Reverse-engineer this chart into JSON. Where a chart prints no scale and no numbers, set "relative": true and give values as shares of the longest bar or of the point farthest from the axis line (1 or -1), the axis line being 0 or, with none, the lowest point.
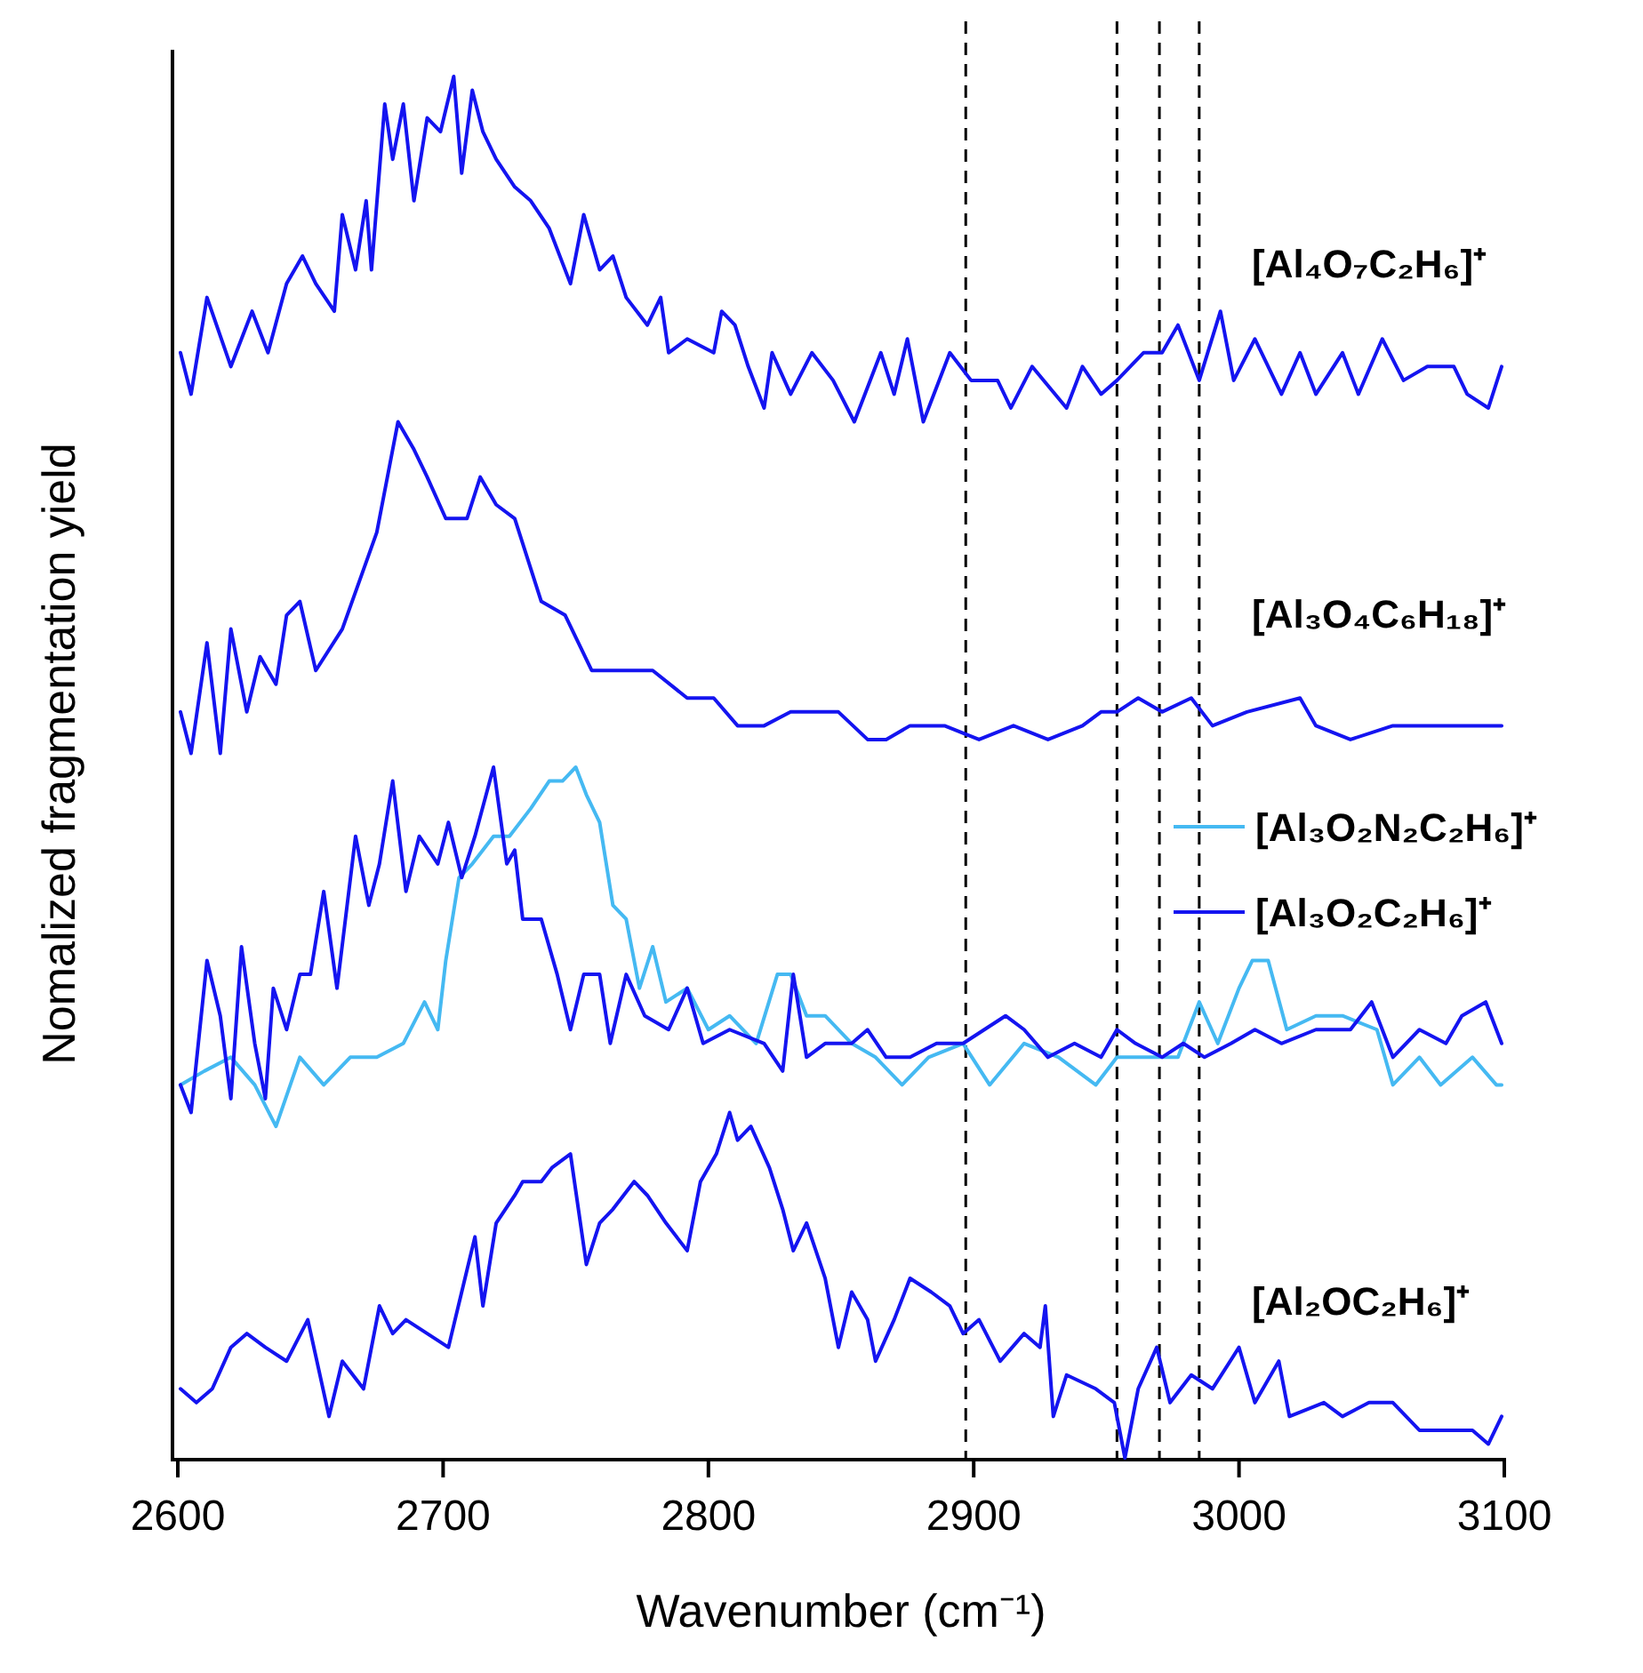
{
  "chart_data": {
    "type": "line",
    "relative": true,
    "xlabel": "Wavenumber (cm⁻¹)",
    "ylabel": "Nomalized fragmentation yield",
    "xlim": [
      2600,
      3100
    ],
    "xticks": [
      2600,
      2700,
      2800,
      2900,
      3000,
      3100
    ],
    "legend": "right",
    "ref_lines": [
      {
        "axis": "x",
        "value": 2897,
        "color": "#000000",
        "line_style": "dashed"
      },
      {
        "axis": "x",
        "value": 2954,
        "color": "#000000",
        "line_style": "dashed"
      },
      {
        "axis": "x",
        "value": 2970,
        "color": "#000000",
        "line_style": "dashed"
      },
      {
        "axis": "x",
        "value": 2985,
        "color": "#000000",
        "line_style": "dashed"
      }
    ],
    "series": [
      {
        "name": "[Al₄O₇C₂H₆]⁺",
        "color": "#1414f0",
        "x": [
          2601,
          2605,
          2611,
          2620,
          2628,
          2634,
          2641,
          2647,
          2652,
          2659,
          2662,
          2667,
          2671,
          2673,
          2678,
          2681,
          2685,
          2689,
          2694,
          2699,
          2704,
          2707,
          2711,
          2715,
          2720,
          2727,
          2733,
          2740,
          2748,
          2753,
          2759,
          2764,
          2769,
          2777,
          2782,
          2785,
          2792,
          2802,
          2805,
          2810,
          2815,
          2821,
          2824,
          2831,
          2839,
          2847,
          2855,
          2865,
          2870,
          2875,
          2881,
          2891,
          2899,
          2909,
          2914,
          2922,
          2935,
          2941,
          2948,
          2954,
          2964,
          2971,
          2977,
          2985,
          2993,
          2998,
          3006,
          3016,
          3023,
          3029,
          3039,
          3045,
          3054,
          3062,
          3071,
          3081,
          3086,
          3094,
          3099
        ],
        "values": [
          0.8,
          0.77,
          0.84,
          0.79,
          0.83,
          0.8,
          0.85,
          0.87,
          0.85,
          0.83,
          0.9,
          0.86,
          0.91,
          0.86,
          0.98,
          0.94,
          0.98,
          0.91,
          0.97,
          0.96,
          1.0,
          0.93,
          0.99,
          0.96,
          0.94,
          0.92,
          0.91,
          0.89,
          0.85,
          0.9,
          0.86,
          0.87,
          0.84,
          0.82,
          0.84,
          0.8,
          0.81,
          0.8,
          0.83,
          0.82,
          0.79,
          0.76,
          0.8,
          0.77,
          0.8,
          0.78,
          0.75,
          0.8,
          0.77,
          0.81,
          0.75,
          0.8,
          0.78,
          0.78,
          0.76,
          0.79,
          0.76,
          0.79,
          0.77,
          0.78,
          0.8,
          0.8,
          0.82,
          0.78,
          0.83,
          0.78,
          0.81,
          0.77,
          0.8,
          0.77,
          0.8,
          0.77,
          0.81,
          0.78,
          0.79,
          0.79,
          0.77,
          0.76,
          0.79
        ]
      },
      {
        "name": "[Al₃O₄C₆H₁₈]⁺",
        "color": "#1414f0",
        "x": [
          2601,
          2605,
          2611,
          2616,
          2620,
          2626,
          2631,
          2637,
          2641,
          2646,
          2652,
          2662,
          2675,
          2680,
          2683,
          2689,
          2694,
          2701,
          2709,
          2714,
          2720,
          2727,
          2737,
          2746,
          2756,
          2766,
          2779,
          2792,
          2802,
          2811,
          2821,
          2831,
          2849,
          2860,
          2867,
          2876,
          2889,
          2902,
          2915,
          2928,
          2941,
          2948,
          2954,
          2962,
          2971,
          2982,
          2990,
          3003,
          3023,
          3029,
          3042,
          3058,
          3075,
          3091,
          3099
        ],
        "values": [
          0.54,
          0.51,
          0.59,
          0.51,
          0.6,
          0.54,
          0.58,
          0.56,
          0.61,
          0.62,
          0.57,
          0.6,
          0.67,
          0.72,
          0.75,
          0.73,
          0.71,
          0.68,
          0.68,
          0.71,
          0.69,
          0.68,
          0.62,
          0.61,
          0.57,
          0.57,
          0.57,
          0.55,
          0.55,
          0.53,
          0.53,
          0.54,
          0.54,
          0.52,
          0.52,
          0.53,
          0.53,
          0.52,
          0.53,
          0.52,
          0.53,
          0.54,
          0.54,
          0.55,
          0.54,
          0.55,
          0.53,
          0.54,
          0.55,
          0.53,
          0.52,
          0.53,
          0.53,
          0.53,
          0.53
        ]
      },
      {
        "name": "[Al₃O₂N₂C₂H₆]⁺",
        "color": "#45b9f2",
        "x": [
          2601,
          2610,
          2620,
          2629,
          2637,
          2646,
          2655,
          2665,
          2675,
          2685,
          2693,
          2698,
          2701,
          2706,
          2711,
          2719,
          2725,
          2733,
          2740,
          2745,
          2750,
          2754,
          2759,
          2764,
          2769,
          2774,
          2779,
          2784,
          2792,
          2800,
          2808,
          2818,
          2826,
          2831,
          2837,
          2844,
          2854,
          2863,
          2873,
          2883,
          2896,
          2906,
          2919,
          2932,
          2946,
          2954,
          2964,
          2977,
          2985,
          2992,
          3000,
          3005,
          3011,
          3018,
          3029,
          3039,
          3052,
          3058,
          3068,
          3076,
          3088,
          3097,
          3099
        ],
        "values": [
          0.27,
          0.28,
          0.29,
          0.27,
          0.24,
          0.29,
          0.27,
          0.29,
          0.29,
          0.3,
          0.33,
          0.31,
          0.36,
          0.42,
          0.43,
          0.45,
          0.45,
          0.47,
          0.49,
          0.49,
          0.5,
          0.48,
          0.46,
          0.4,
          0.39,
          0.34,
          0.37,
          0.33,
          0.34,
          0.31,
          0.32,
          0.3,
          0.35,
          0.35,
          0.32,
          0.32,
          0.3,
          0.29,
          0.27,
          0.29,
          0.3,
          0.27,
          0.3,
          0.29,
          0.27,
          0.29,
          0.29,
          0.29,
          0.33,
          0.3,
          0.34,
          0.36,
          0.36,
          0.31,
          0.32,
          0.32,
          0.31,
          0.27,
          0.29,
          0.27,
          0.29,
          0.27,
          0.27
        ]
      },
      {
        "name": "[Al₃O₂C₂H₆]⁺",
        "color": "#1414f0",
        "x": [
          2601,
          2605,
          2611,
          2616,
          2620,
          2624,
          2629,
          2633,
          2636,
          2641,
          2646,
          2650,
          2655,
          2660,
          2667,
          2672,
          2676,
          2681,
          2686,
          2691,
          2698,
          2702,
          2707,
          2712,
          2719,
          2724,
          2727,
          2730,
          2737,
          2743,
          2748,
          2753,
          2759,
          2763,
          2769,
          2776,
          2785,
          2792,
          2798,
          2808,
          2821,
          2828,
          2832,
          2837,
          2844,
          2854,
          2860,
          2867,
          2876,
          2886,
          2896,
          2904,
          2912,
          2919,
          2928,
          2938,
          2948,
          2954,
          2961,
          2971,
          2979,
          2987,
          2997,
          3006,
          3016,
          3029,
          3042,
          3050,
          3058,
          3068,
          3078,
          3084,
          3093,
          3099
        ],
        "values": [
          0.27,
          0.25,
          0.36,
          0.32,
          0.26,
          0.37,
          0.3,
          0.26,
          0.34,
          0.31,
          0.35,
          0.35,
          0.41,
          0.34,
          0.45,
          0.4,
          0.43,
          0.49,
          0.41,
          0.45,
          0.43,
          0.46,
          0.42,
          0.45,
          0.5,
          0.43,
          0.44,
          0.39,
          0.39,
          0.35,
          0.31,
          0.35,
          0.35,
          0.3,
          0.35,
          0.32,
          0.31,
          0.34,
          0.3,
          0.31,
          0.3,
          0.28,
          0.35,
          0.29,
          0.3,
          0.3,
          0.31,
          0.29,
          0.29,
          0.3,
          0.3,
          0.31,
          0.32,
          0.31,
          0.29,
          0.3,
          0.29,
          0.31,
          0.3,
          0.29,
          0.3,
          0.29,
          0.3,
          0.31,
          0.3,
          0.31,
          0.31,
          0.33,
          0.29,
          0.31,
          0.3,
          0.32,
          0.33,
          0.3
        ]
      },
      {
        "name": "[Al₂OC₂H₆]⁺",
        "color": "#1414f0",
        "x": [
          2601,
          2607,
          2613,
          2620,
          2626,
          2633,
          2641,
          2649,
          2657,
          2662,
          2670,
          2676,
          2681,
          2686,
          2694,
          2702,
          2707,
          2712,
          2715,
          2720,
          2727,
          2730,
          2737,
          2741,
          2748,
          2754,
          2759,
          2764,
          2772,
          2777,
          2784,
          2792,
          2797,
          2803,
          2808,
          2811,
          2816,
          2823,
          2828,
          2832,
          2837,
          2844,
          2849,
          2854,
          2860,
          2863,
          2870,
          2876,
          2884,
          2891,
          2896,
          2902,
          2910,
          2919,
          2925,
          2927,
          2930,
          2935,
          2946,
          2953,
          2957,
          2962,
          2969,
          2974,
          2982,
          2990,
          3000,
          3006,
          3015,
          3019,
          3032,
          3039,
          3049,
          3058,
          3068,
          3078,
          3088,
          3094,
          3099
        ],
        "values": [
          0.05,
          0.04,
          0.05,
          0.08,
          0.09,
          0.08,
          0.07,
          0.1,
          0.03,
          0.07,
          0.05,
          0.11,
          0.09,
          0.1,
          0.09,
          0.08,
          0.12,
          0.16,
          0.11,
          0.17,
          0.19,
          0.2,
          0.2,
          0.21,
          0.22,
          0.14,
          0.17,
          0.18,
          0.2,
          0.19,
          0.17,
          0.15,
          0.2,
          0.22,
          0.25,
          0.23,
          0.24,
          0.21,
          0.18,
          0.15,
          0.17,
          0.13,
          0.08,
          0.12,
          0.1,
          0.07,
          0.1,
          0.13,
          0.12,
          0.11,
          0.09,
          0.1,
          0.07,
          0.09,
          0.08,
          0.11,
          0.03,
          0.06,
          0.05,
          0.04,
          0.0,
          0.05,
          0.08,
          0.04,
          0.06,
          0.05,
          0.08,
          0.04,
          0.07,
          0.03,
          0.04,
          0.03,
          0.04,
          0.04,
          0.02,
          0.02,
          0.02,
          0.01,
          0.03
        ]
      }
    ]
  }
}
